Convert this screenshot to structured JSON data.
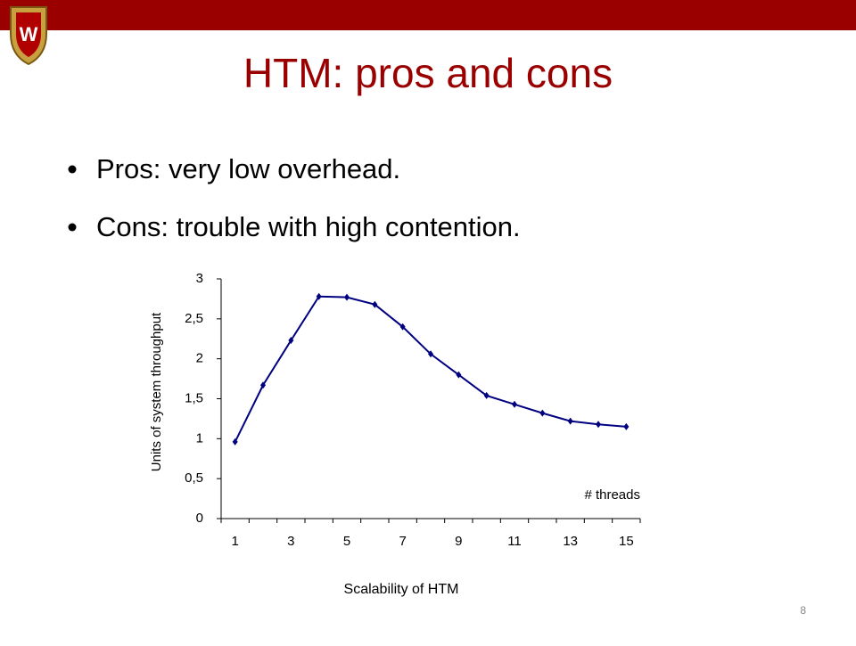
{
  "slide": {
    "title": "HTM: pros and cons",
    "bullets": [
      "Pros: very low overhead.",
      "Cons: trouble with high contention."
    ],
    "page_number": "8"
  },
  "chart_data": {
    "type": "line",
    "y_label": "Units of system throughput",
    "annotation": "# threads",
    "x_label": "Scalability of HTM",
    "categories": [
      "1",
      null,
      "3",
      null,
      "5",
      null,
      "7",
      null,
      "9",
      null,
      "11",
      null,
      "13",
      null,
      "15"
    ],
    "values": [
      0.96,
      1.67,
      2.23,
      2.78,
      2.77,
      2.68,
      2.4,
      2.06,
      1.8,
      1.54,
      1.43,
      1.32,
      1.22,
      1.18,
      1.15
    ],
    "color": "#000080",
    "ylim": [
      0,
      3
    ],
    "yticks": [
      0,
      {
        "value": 0.5,
        "label": "0,5"
      },
      1,
      {
        "value": 1.5,
        "label": "1,5"
      },
      2,
      {
        "value": 2.5,
        "label": "2,5"
      },
      3
    ]
  }
}
